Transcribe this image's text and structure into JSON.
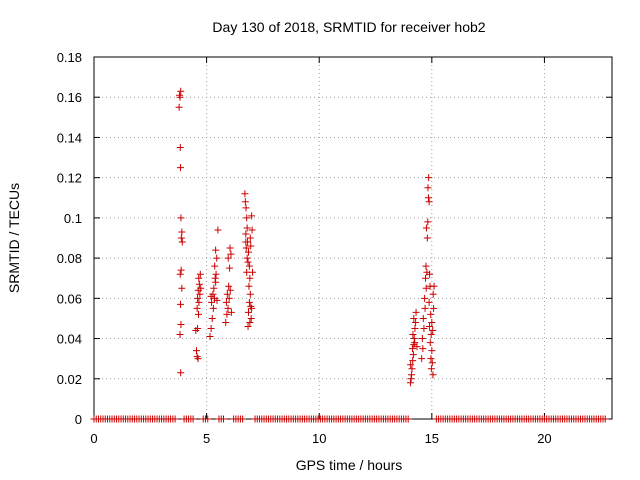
{
  "chart_data": {
    "type": "scatter",
    "title": "Day 130 of 2018, SRMTID for receiver hob2",
    "xlabel": "GPS time / hours",
    "ylabel": "SRMTID / TECUs",
    "xlim": [
      0,
      23
    ],
    "ylim": [
      0,
      0.18
    ],
    "xticks": [
      0,
      5,
      10,
      15,
      20
    ],
    "xtick_labels": [
      "0",
      "5",
      "10",
      "15",
      "20"
    ],
    "yticks": [
      0,
      0.02,
      0.04,
      0.06,
      0.08,
      0.1,
      0.12,
      0.14,
      0.16,
      0.18
    ],
    "ytick_labels": [
      "0",
      "0.02",
      "0.04",
      "0.06",
      "0.08",
      "0.1",
      "0.12",
      "0.14",
      "0.16",
      "0.18"
    ],
    "grid": true,
    "series": [
      {
        "name": "SRMTID",
        "marker": "+",
        "color": "#cc0000",
        "points": [
          [
            3.8,
            0.161
          ],
          [
            3.82,
            0.16
          ],
          [
            3.85,
            0.163
          ],
          [
            3.78,
            0.155
          ],
          [
            3.83,
            0.135
          ],
          [
            3.84,
            0.125
          ],
          [
            3.86,
            0.1
          ],
          [
            3.9,
            0.093
          ],
          [
            3.88,
            0.09
          ],
          [
            3.92,
            0.088
          ],
          [
            3.87,
            0.074
          ],
          [
            3.83,
            0.072
          ],
          [
            3.9,
            0.065
          ],
          [
            3.84,
            0.057
          ],
          [
            3.86,
            0.047
          ],
          [
            3.82,
            0.042
          ],
          [
            3.85,
            0.023
          ],
          [
            4.55,
            0.034
          ],
          [
            4.58,
            0.031
          ],
          [
            4.62,
            0.03
          ],
          [
            4.52,
            0.044
          ],
          [
            4.6,
            0.045
          ],
          [
            4.64,
            0.052
          ],
          [
            4.58,
            0.055
          ],
          [
            4.66,
            0.058
          ],
          [
            4.6,
            0.06
          ],
          [
            4.7,
            0.062
          ],
          [
            4.63,
            0.064
          ],
          [
            4.68,
            0.067
          ],
          [
            4.72,
            0.072
          ],
          [
            4.74,
            0.065
          ],
          [
            4.65,
            0.07
          ],
          [
            5.15,
            0.041
          ],
          [
            5.2,
            0.045
          ],
          [
            5.25,
            0.05
          ],
          [
            5.3,
            0.055
          ],
          [
            5.22,
            0.058
          ],
          [
            5.35,
            0.06
          ],
          [
            5.28,
            0.062
          ],
          [
            5.32,
            0.065
          ],
          [
            5.4,
            0.068
          ],
          [
            5.38,
            0.07
          ],
          [
            5.42,
            0.072
          ],
          [
            5.36,
            0.076
          ],
          [
            5.45,
            0.08
          ],
          [
            5.4,
            0.084
          ],
          [
            5.5,
            0.094
          ],
          [
            5.2,
            0.061
          ],
          [
            5.46,
            0.059
          ],
          [
            5.85,
            0.048
          ],
          [
            5.9,
            0.052
          ],
          [
            5.95,
            0.055
          ],
          [
            5.88,
            0.058
          ],
          [
            6.0,
            0.06
          ],
          [
            5.92,
            0.062
          ],
          [
            6.05,
            0.064
          ],
          [
            5.98,
            0.066
          ],
          [
            6.02,
            0.075
          ],
          [
            5.96,
            0.08
          ],
          [
            6.08,
            0.082
          ],
          [
            6.04,
            0.085
          ],
          [
            6.1,
            0.053
          ],
          [
            6.7,
            0.112
          ],
          [
            6.72,
            0.108
          ],
          [
            6.75,
            0.105
          ],
          [
            6.78,
            0.1
          ],
          [
            6.8,
            0.095
          ],
          [
            6.74,
            0.092
          ],
          [
            6.82,
            0.088
          ],
          [
            6.76,
            0.085
          ],
          [
            6.86,
            0.083
          ],
          [
            6.8,
            0.08
          ],
          [
            6.84,
            0.078
          ],
          [
            6.9,
            0.076
          ],
          [
            6.78,
            0.073
          ],
          [
            6.92,
            0.07
          ],
          [
            6.88,
            0.066
          ],
          [
            6.94,
            0.062
          ],
          [
            6.9,
            0.058
          ],
          [
            6.96,
            0.056
          ],
          [
            6.86,
            0.053
          ],
          [
            6.98,
            0.05
          ],
          [
            6.92,
            0.048
          ],
          [
            6.84,
            0.046
          ],
          [
            7.0,
            0.101
          ],
          [
            7.02,
            0.094
          ],
          [
            6.96,
            0.086
          ],
          [
            7.04,
            0.073
          ],
          [
            7.0,
            0.055
          ],
          [
            6.74,
            0.088
          ],
          [
            6.94,
            0.09
          ],
          [
            14.05,
            0.018
          ],
          [
            14.08,
            0.02
          ],
          [
            14.1,
            0.022
          ],
          [
            14.12,
            0.025
          ],
          [
            14.06,
            0.027
          ],
          [
            14.15,
            0.029
          ],
          [
            14.18,
            0.032
          ],
          [
            14.14,
            0.035
          ],
          [
            14.2,
            0.037
          ],
          [
            14.22,
            0.04
          ],
          [
            14.16,
            0.042
          ],
          [
            14.25,
            0.045
          ],
          [
            14.28,
            0.048
          ],
          [
            14.2,
            0.05
          ],
          [
            14.3,
            0.053
          ],
          [
            14.24,
            0.038
          ],
          [
            14.34,
            0.036
          ],
          [
            14.55,
            0.03
          ],
          [
            14.6,
            0.035
          ],
          [
            14.58,
            0.04
          ],
          [
            14.65,
            0.045
          ],
          [
            14.62,
            0.05
          ],
          [
            14.7,
            0.055
          ],
          [
            14.68,
            0.06
          ],
          [
            14.75,
            0.065
          ],
          [
            14.72,
            0.07
          ],
          [
            14.78,
            0.073
          ],
          [
            14.74,
            0.076
          ],
          [
            14.8,
            0.09
          ],
          [
            14.76,
            0.095
          ],
          [
            14.82,
            0.098
          ],
          [
            14.85,
            0.11
          ],
          [
            14.88,
            0.108
          ],
          [
            14.83,
            0.115
          ],
          [
            14.86,
            0.12
          ],
          [
            14.9,
            0.072
          ],
          [
            14.92,
            0.066
          ],
          [
            14.88,
            0.058
          ],
          [
            14.95,
            0.052
          ],
          [
            14.9,
            0.046
          ],
          [
            14.97,
            0.042
          ],
          [
            14.93,
            0.038
          ],
          [
            15.0,
            0.034
          ],
          [
            14.96,
            0.03
          ],
          [
            15.02,
            0.028
          ],
          [
            14.98,
            0.025
          ],
          [
            15.05,
            0.022
          ],
          [
            15.0,
            0.048
          ],
          [
            15.08,
            0.055
          ],
          [
            15.06,
            0.062
          ],
          [
            15.1,
            0.066
          ],
          [
            15.04,
            0.044
          ]
        ],
        "zero_baseline_ranges": [
          [
            0.0,
            3.6
          ],
          [
            4.0,
            4.45
          ],
          [
            4.85,
            5.05
          ],
          [
            5.55,
            5.75
          ],
          [
            6.2,
            6.6
          ],
          [
            7.15,
            14.0
          ],
          [
            15.2,
            22.7
          ]
        ]
      }
    ]
  }
}
